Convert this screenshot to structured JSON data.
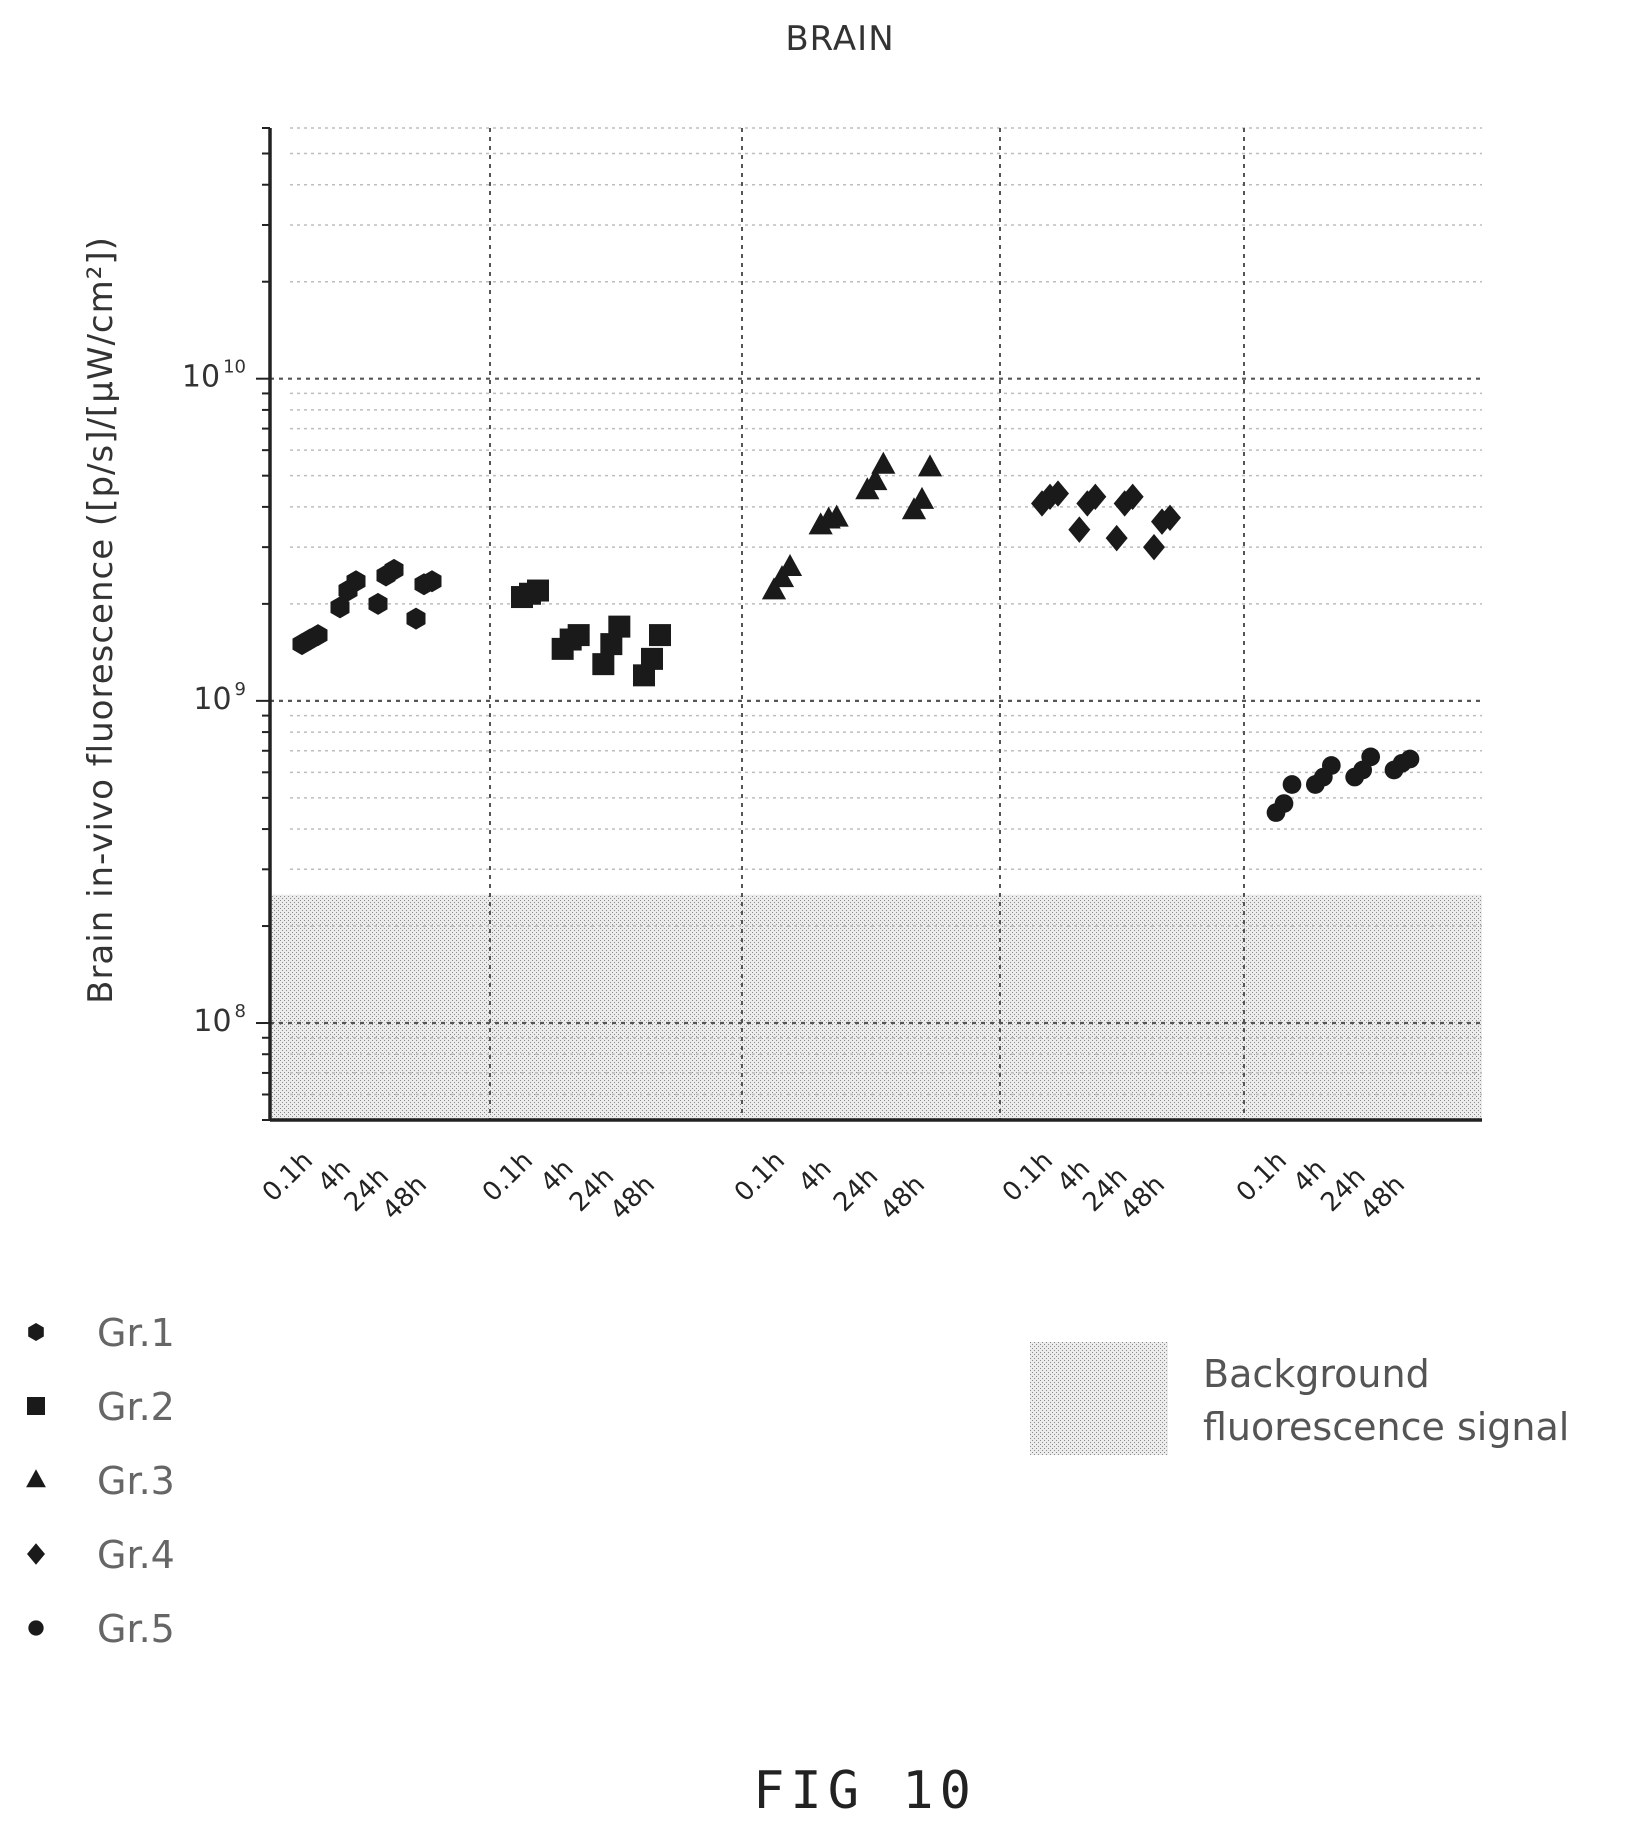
{
  "chart_data": {
    "type": "scatter",
    "title": "BRAIN",
    "ylabel": "Brain in-vivo fluorescence ([p/s]/[µW/cm²])",
    "yscale": "log",
    "ylim": [
      50000000,
      60000000000
    ],
    "yticks": [
      {
        "value": 100000000,
        "base": "10",
        "exp": "8"
      },
      {
        "value": 1000000000,
        "base": "10",
        "exp": "9"
      },
      {
        "value": 10000000000,
        "base": "10",
        "exp": "10"
      }
    ],
    "grid": true,
    "background_band": {
      "from": 50000000,
      "to": 250000000,
      "label": "Background fluorescence signal"
    },
    "groups": [
      {
        "name": "Gr.1",
        "marker": "hexagon",
        "timepoints": [
          {
            "label": "0.1h",
            "values": [
              1500000000,
              1550000000,
              1600000000
            ]
          },
          {
            "label": "4h",
            "values": [
              1950000000,
              2200000000,
              2350000000
            ]
          },
          {
            "label": "24h",
            "values": [
              2000000000,
              2450000000,
              2550000000
            ]
          },
          {
            "label": "48h",
            "values": [
              1800000000,
              2300000000,
              2350000000
            ]
          }
        ]
      },
      {
        "name": "Gr.2",
        "marker": "square",
        "timepoints": [
          {
            "label": "0.1h",
            "values": [
              2100000000,
              2150000000,
              2200000000
            ]
          },
          {
            "label": "4h",
            "values": [
              1450000000,
              1550000000,
              1600000000
            ]
          },
          {
            "label": "24h",
            "values": [
              1300000000,
              1500000000,
              1700000000
            ]
          },
          {
            "label": "48h",
            "values": [
              1200000000,
              1350000000,
              1600000000
            ]
          }
        ]
      },
      {
        "name": "Gr.3",
        "marker": "triangle",
        "timepoints": [
          {
            "label": "0.1h",
            "values": [
              2200000000,
              2400000000,
              2600000000
            ]
          },
          {
            "label": "4h",
            "values": [
              3500000000,
              3650000000,
              3700000000
            ]
          },
          {
            "label": "24h",
            "values": [
              4500000000,
              4800000000,
              5400000000
            ]
          },
          {
            "label": "48h",
            "values": [
              3900000000,
              4200000000,
              5300000000
            ]
          }
        ]
      },
      {
        "name": "Gr.4",
        "marker": "diamond",
        "timepoints": [
          {
            "label": "0.1h",
            "values": [
              4100000000,
              4300000000,
              4400000000
            ]
          },
          {
            "label": "4h",
            "values": [
              3400000000,
              4100000000,
              4300000000
            ]
          },
          {
            "label": "24h",
            "values": [
              3200000000,
              4100000000,
              4300000000
            ]
          },
          {
            "label": "48h",
            "values": [
              3000000000,
              3600000000,
              3700000000
            ]
          }
        ]
      },
      {
        "name": "Gr.5",
        "marker": "dot",
        "timepoints": [
          {
            "label": "0.1h",
            "values": [
              450000000,
              480000000,
              550000000
            ]
          },
          {
            "label": "4h",
            "values": [
              550000000,
              580000000,
              630000000
            ]
          },
          {
            "label": "24h",
            "values": [
              580000000,
              610000000,
              670000000
            ]
          },
          {
            "label": "48h",
            "values": [
              610000000,
              640000000,
              660000000
            ]
          }
        ]
      }
    ],
    "legend": {
      "placement": "bottom-left"
    }
  },
  "figure_label": "FIG 10"
}
